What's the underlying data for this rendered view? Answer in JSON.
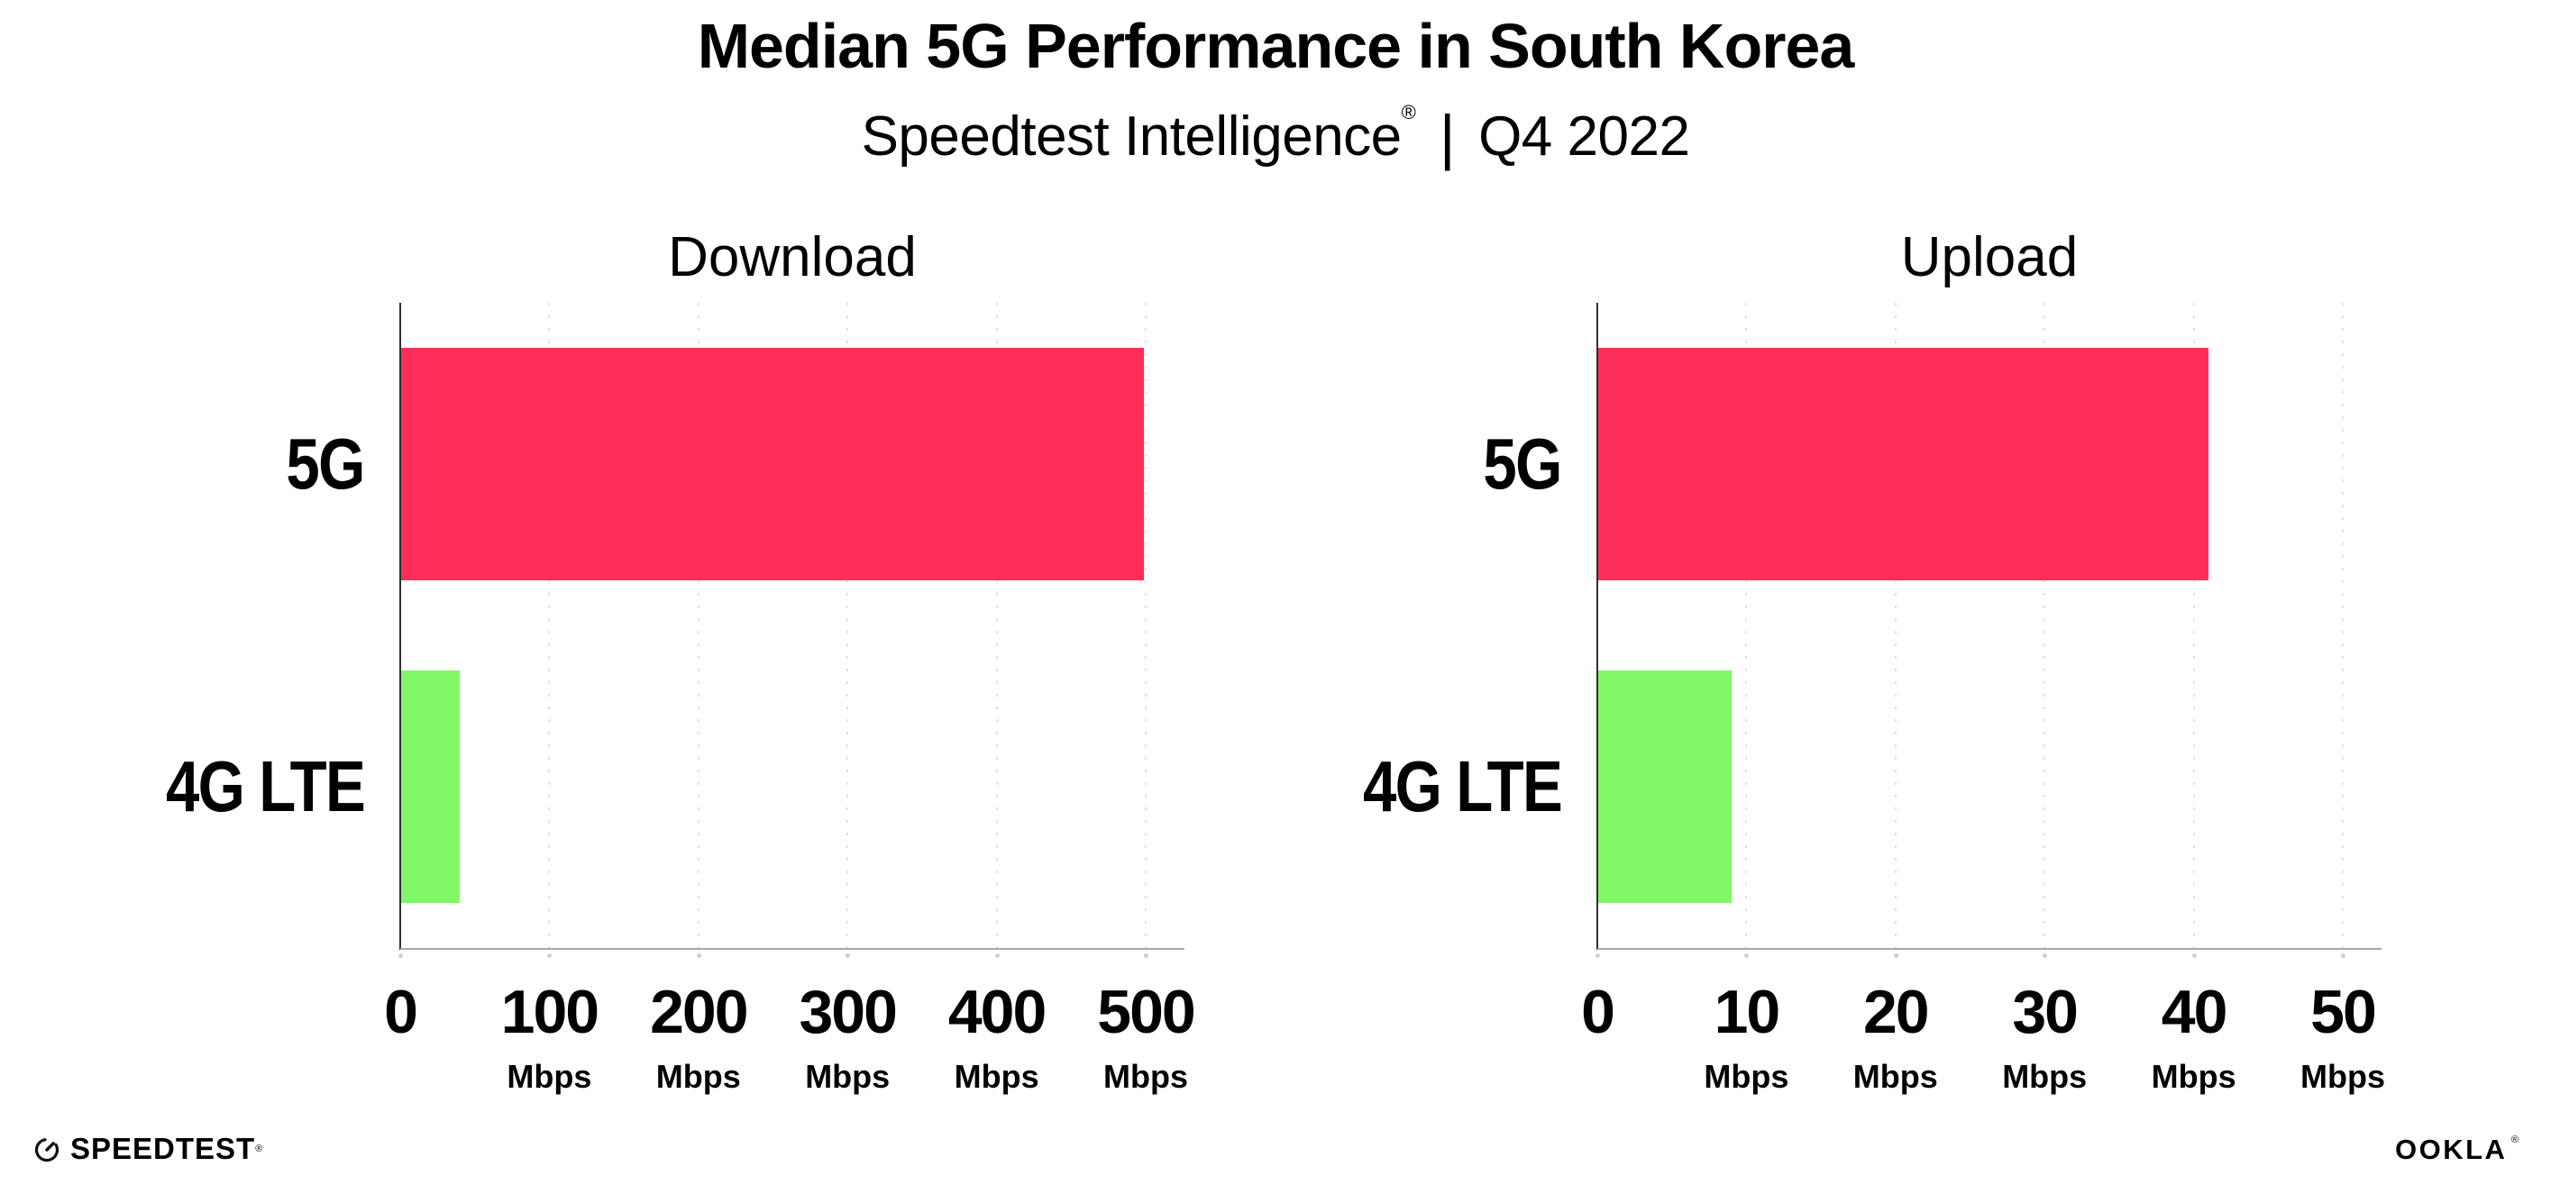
{
  "header": {
    "title": "Median 5G Performance in South Korea",
    "subtitle_brand": "Speedtest Intelligence",
    "subtitle_registered": "®",
    "subtitle_separator": "|",
    "subtitle_period": "Q4 2022"
  },
  "chart_data": [
    {
      "type": "bar",
      "orientation": "horizontal",
      "title": "Download",
      "categories": [
        "5G",
        "4G LTE"
      ],
      "values": [
        499,
        40
      ],
      "unit": "Mbps",
      "xlim": [
        0,
        526
      ],
      "xticks": [
        0,
        100,
        200,
        300,
        400,
        500
      ],
      "bar_colors": [
        "#FD2E57",
        "#80F766"
      ],
      "grid": "dotted-vertical",
      "legend": "none"
    },
    {
      "type": "bar",
      "orientation": "horizontal",
      "title": "Upload",
      "categories": [
        "5G",
        "4G LTE"
      ],
      "values": [
        41,
        9
      ],
      "unit": "Mbps",
      "xlim": [
        0,
        52.6
      ],
      "xticks": [
        0,
        10,
        20,
        30,
        40,
        50
      ],
      "bar_colors": [
        "#FD2E57",
        "#80F766"
      ],
      "grid": "dotted-vertical",
      "legend": "none"
    }
  ],
  "footer": {
    "speedtest": "SPEEDTEST",
    "speedtest_mark": "®",
    "ookla": "OOKLA",
    "ookla_mark": "®"
  },
  "colors": {
    "bar_5g": "#FD2E57",
    "bar_4g_lte": "#80F766",
    "x_axis_line": "#a8a8a8",
    "y_axis_line": "#2f2f2f",
    "gridline_dots": "#e0e0ea",
    "text": "#000000",
    "background": "#ffffff"
  }
}
